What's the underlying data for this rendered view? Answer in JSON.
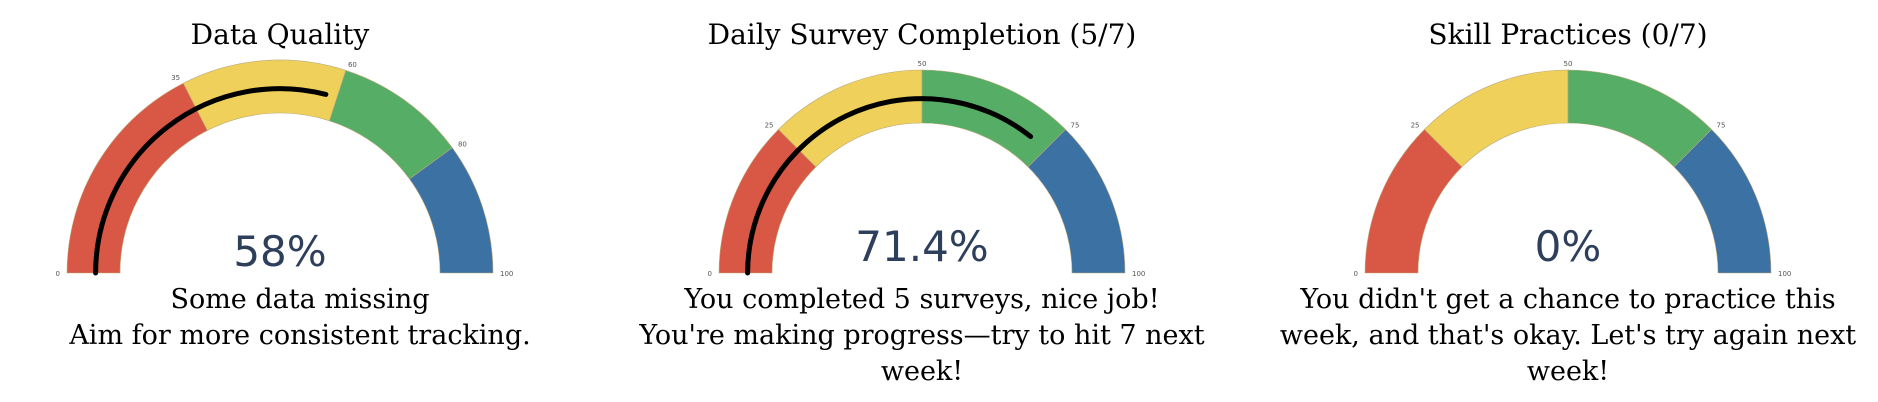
{
  "colors": {
    "red": "#d95845",
    "yellow": "#efd05a",
    "green": "#56ad66",
    "blue": "#3b71a3",
    "needle": "#000000",
    "value_text": "#2e3f5c"
  },
  "chart_data": [
    {
      "type": "gauge",
      "title": "Data Quality",
      "value": 58,
      "value_label": "58%",
      "range": [
        0,
        100
      ],
      "bands": [
        {
          "from": 0,
          "to": 35,
          "color": "red"
        },
        {
          "from": 35,
          "to": 60,
          "color": "yellow"
        },
        {
          "from": 60,
          "to": 80,
          "color": "green"
        },
        {
          "from": 80,
          "to": 100,
          "color": "blue"
        }
      ],
      "ticks": [
        "0",
        "35",
        "60",
        "80",
        "100"
      ],
      "tick_values": [
        0,
        35,
        60,
        80,
        100
      ],
      "message_lines": [
        "Some data missing",
        "Aim for more consistent tracking."
      ]
    },
    {
      "type": "gauge",
      "title": "Daily Survey Completion (5/7)",
      "value": 71.4,
      "value_label": "71.4%",
      "range": [
        0,
        100
      ],
      "bands": [
        {
          "from": 0,
          "to": 25,
          "color": "red"
        },
        {
          "from": 25,
          "to": 50,
          "color": "yellow"
        },
        {
          "from": 50,
          "to": 75,
          "color": "green"
        },
        {
          "from": 75,
          "to": 100,
          "color": "blue"
        }
      ],
      "ticks": [
        "0",
        "25",
        "50",
        "75",
        "100"
      ],
      "tick_values": [
        0,
        25,
        50,
        75,
        100
      ],
      "message_lines": [
        "You completed 5 surveys, nice job!",
        "You're making progress—try to hit 7 next week!"
      ]
    },
    {
      "type": "gauge",
      "title": "Skill Practices (0/7)",
      "value": 0,
      "value_label": "0%",
      "range": [
        0,
        100
      ],
      "bands": [
        {
          "from": 0,
          "to": 25,
          "color": "red"
        },
        {
          "from": 25,
          "to": 50,
          "color": "yellow"
        },
        {
          "from": 50,
          "to": 75,
          "color": "green"
        },
        {
          "from": 75,
          "to": 100,
          "color": "blue"
        }
      ],
      "ticks": [
        "0",
        "25",
        "50",
        "75",
        "100"
      ],
      "tick_values": [
        0,
        25,
        50,
        75,
        100
      ],
      "message_lines": [
        "You didn't get a chance to practice this week, and that's okay. Let's try again next week!"
      ]
    }
  ]
}
